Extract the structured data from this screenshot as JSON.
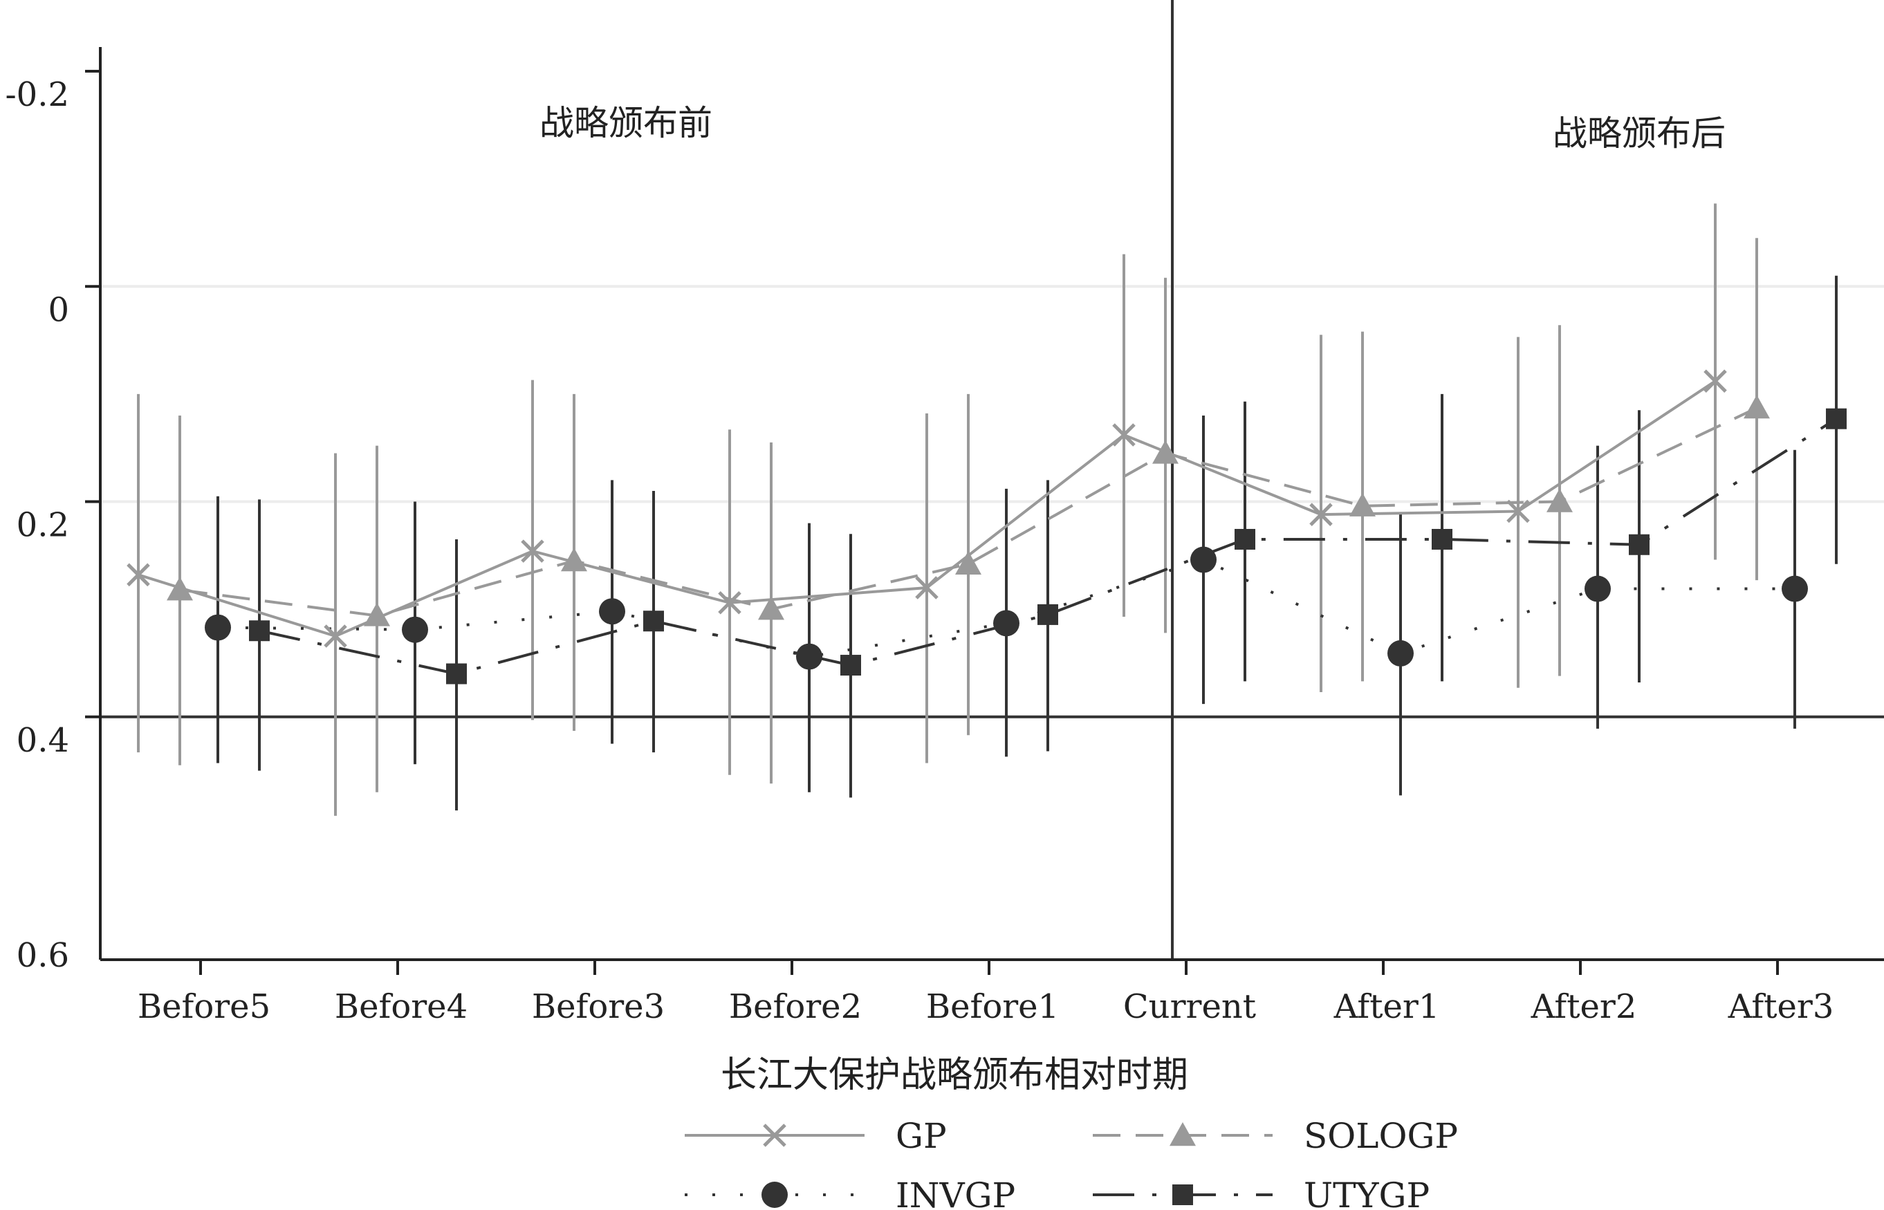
{
  "chart_data": {
    "type": "line",
    "xlabel": "长江大保护战略颁布相对时期",
    "ylabel": "",
    "categories": [
      "Before5",
      "Before4",
      "Before3",
      "Before2",
      "Before1",
      "Current",
      "After1",
      "After2",
      "After3"
    ],
    "yticks": [
      "-0.2",
      "0",
      "0.2",
      "0.4",
      "0.6"
    ],
    "ylim": [
      -0.2,
      0.6
    ],
    "y_reversed": true,
    "grid": true,
    "reference_y": 0.4,
    "reference_x": "Current",
    "annotations": [
      {
        "text": "战略颁布前",
        "region": "before"
      },
      {
        "text": "战略颁布后",
        "region": "after"
      }
    ],
    "legend_position": "bottom",
    "series": [
      {
        "name": "GP",
        "color": "#999999",
        "marker": "x",
        "line": "solid",
        "values": [
          0.268,
          0.325,
          0.246,
          0.294,
          0.28,
          0.138,
          0.212,
          0.209,
          0.088
        ],
        "ci_low": [
          0.1,
          0.155,
          0.087,
          0.133,
          0.118,
          -0.03,
          0.045,
          0.047,
          -0.077
        ],
        "ci_high": [
          0.433,
          0.492,
          0.403,
          0.454,
          0.443,
          0.307,
          0.377,
          0.373,
          0.254
        ]
      },
      {
        "name": "SOLOGP",
        "color": "#999999",
        "marker": "triangle",
        "line": "dashed",
        "values": [
          0.282,
          0.306,
          0.255,
          0.3,
          0.258,
          0.155,
          0.204,
          0.2,
          0.113
        ],
        "ci_low": [
          0.12,
          0.148,
          0.1,
          0.145,
          0.1,
          -0.008,
          0.042,
          0.036,
          -0.045
        ],
        "ci_high": [
          0.445,
          0.47,
          0.413,
          0.462,
          0.417,
          0.322,
          0.367,
          0.362,
          0.273
        ]
      },
      {
        "name": "INVGP",
        "color": "#333333",
        "marker": "circle",
        "line": "dotted",
        "values": [
          0.317,
          0.319,
          0.302,
          0.344,
          0.313,
          0.254,
          0.341,
          0.281,
          0.281
        ],
        "ci_low": [
          0.195,
          0.2,
          0.18,
          0.22,
          0.188,
          0.12,
          0.21,
          0.148,
          0.152
        ],
        "ci_high": [
          0.443,
          0.444,
          0.425,
          0.47,
          0.437,
          0.388,
          0.473,
          0.411,
          0.411
        ]
      },
      {
        "name": "UTYGP",
        "color": "#333333",
        "marker": "square",
        "line": "dashdot",
        "values": [
          0.32,
          0.36,
          0.311,
          0.352,
          0.305,
          0.235,
          0.235,
          0.24,
          0.123
        ],
        "ci_low": [
          0.198,
          0.235,
          0.19,
          0.23,
          0.18,
          0.107,
          0.1,
          0.115,
          -0.01
        ],
        "ci_high": [
          0.45,
          0.487,
          0.433,
          0.475,
          0.432,
          0.367,
          0.367,
          0.368,
          0.258
        ]
      }
    ]
  }
}
